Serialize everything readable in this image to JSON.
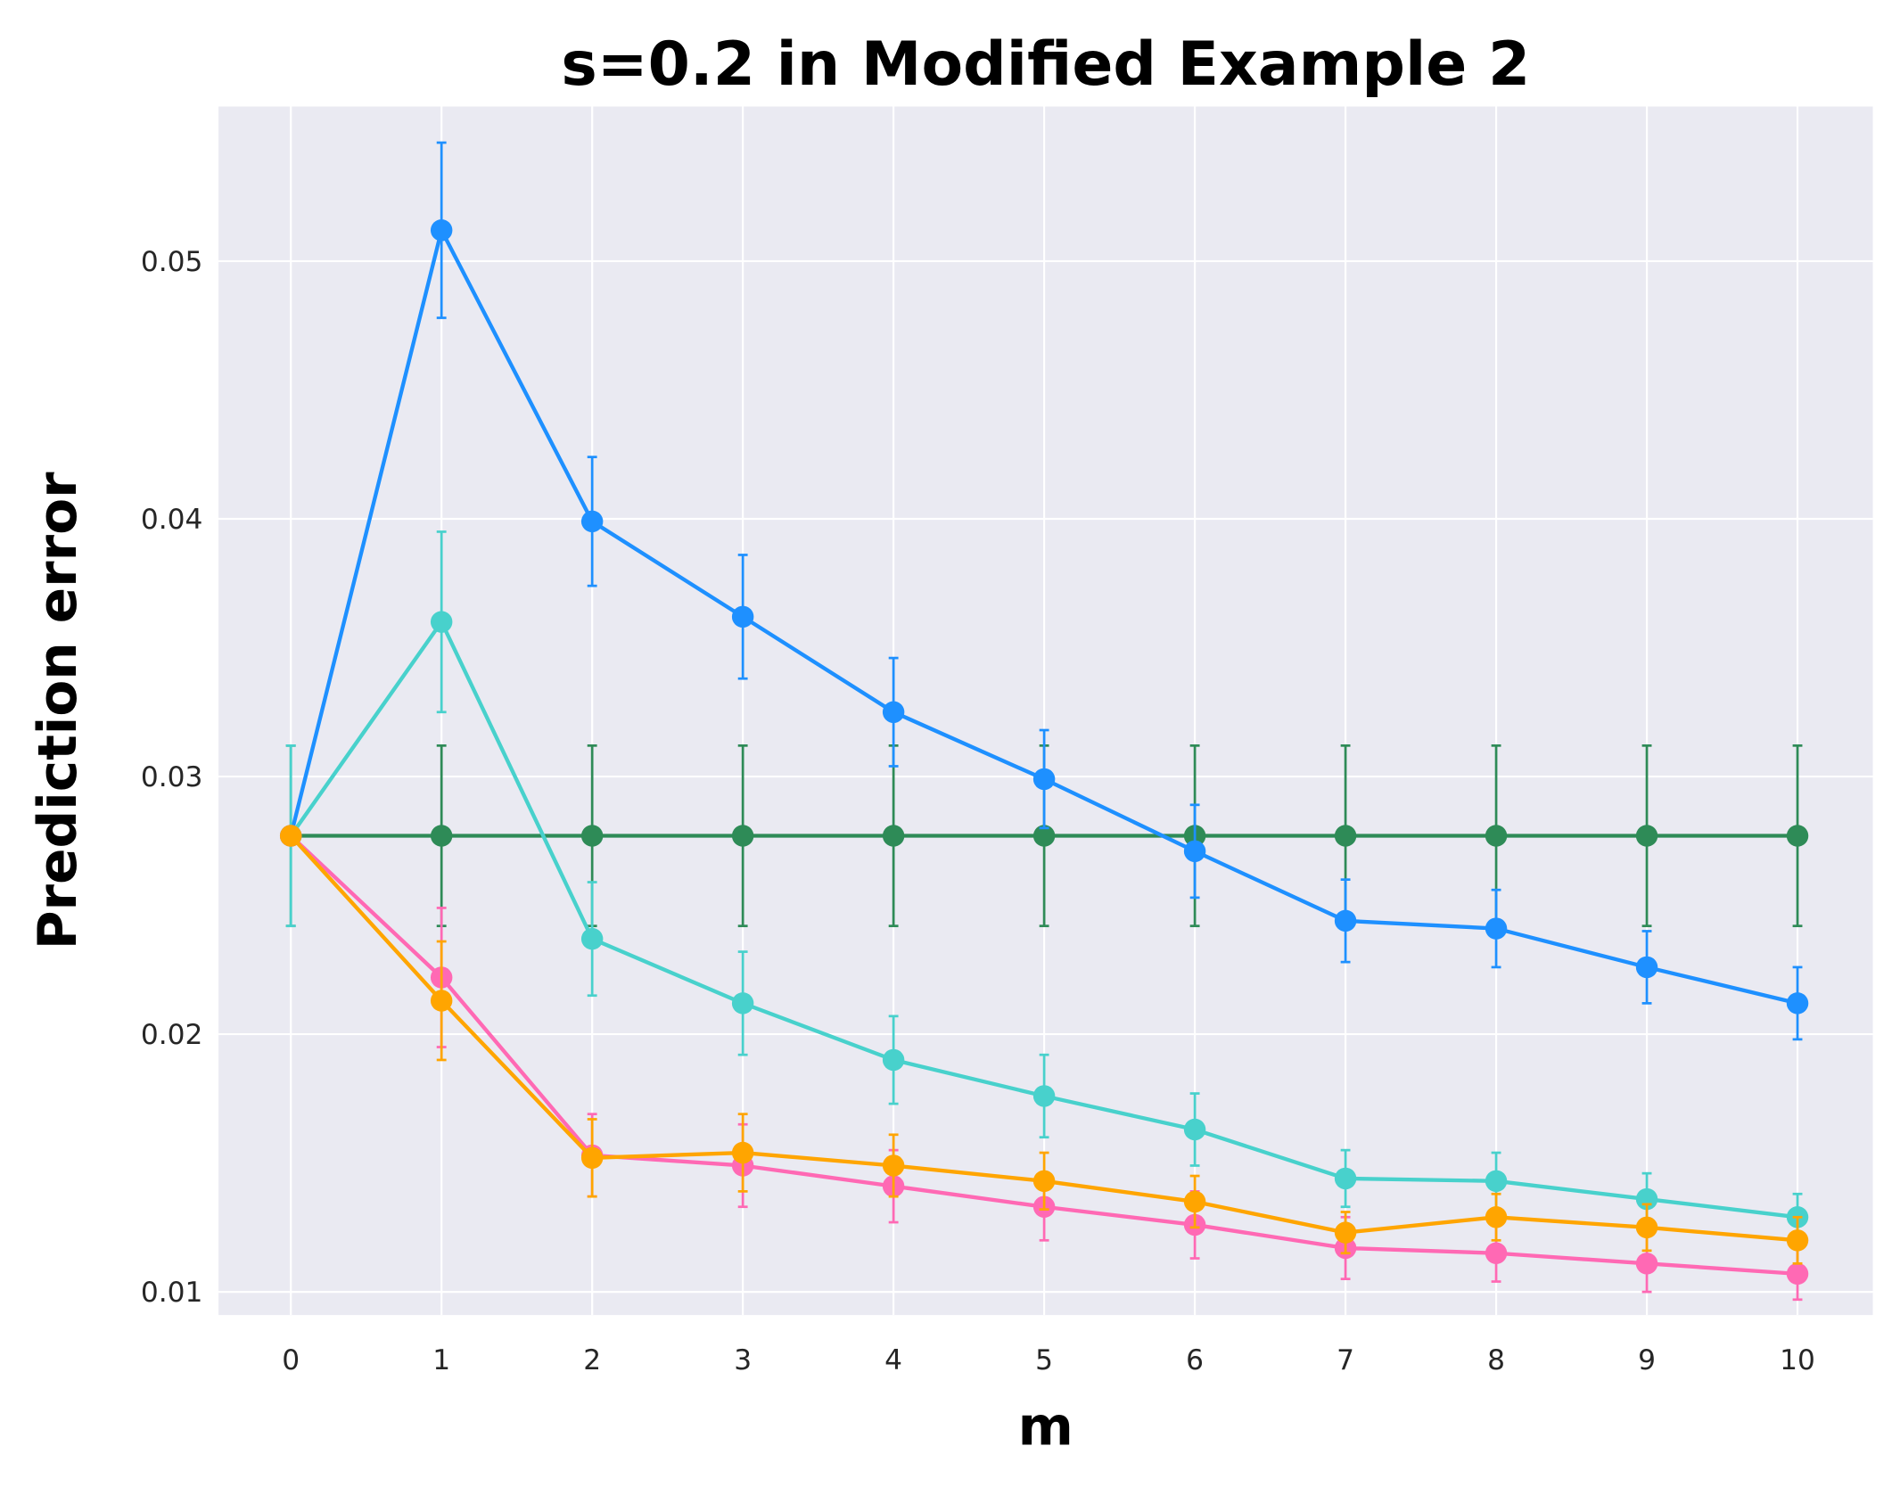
{
  "chart_data": {
    "type": "line",
    "title": "s=0.2 in Modified Example 2",
    "xlabel": "m",
    "ylabel": "Prediction error",
    "x": [
      0,
      1,
      2,
      3,
      4,
      5,
      6,
      7,
      8,
      9,
      10
    ],
    "xticks": [
      "0",
      "1",
      "2",
      "3",
      "4",
      "5",
      "6",
      "7",
      "8",
      "9",
      "10"
    ],
    "yticks": [
      "0.01",
      "0.02",
      "0.03",
      "0.04",
      "0.05"
    ],
    "ytick_values": [
      0.01,
      0.02,
      0.03,
      0.04,
      0.05
    ],
    "xlim": [
      -0.48,
      10.5
    ],
    "ylim": [
      0.0091,
      0.056
    ],
    "grid": true,
    "legend": "none",
    "background": "#eaeaf2",
    "series": [
      {
        "color": "#2e8b57",
        "values": [
          0.0277,
          0.0277,
          0.0277,
          0.0277,
          0.0277,
          0.0277,
          0.0277,
          0.0277,
          0.0277,
          0.0277,
          0.0277
        ],
        "errors": [
          0.0035,
          0.0035,
          0.0035,
          0.0035,
          0.0035,
          0.0035,
          0.0035,
          0.0035,
          0.0035,
          0.0035,
          0.0035
        ]
      },
      {
        "color": "#1e90ff",
        "values": [
          0.0277,
          0.0512,
          0.0399,
          0.0362,
          0.0325,
          0.0299,
          0.0271,
          0.0244,
          0.0241,
          0.0226,
          0.0212
        ],
        "errors": [
          0,
          0.0034,
          0.0025,
          0.0024,
          0.0021,
          0.0019,
          0.0018,
          0.0016,
          0.0015,
          0.0014,
          0.0014
        ]
      },
      {
        "color": "#48d1cc",
        "values": [
          0.0277,
          0.036,
          0.0237,
          0.0212,
          0.019,
          0.0176,
          0.0163,
          0.0144,
          0.0143,
          0.0136,
          0.0129
        ],
        "errors": [
          0.0035,
          0.0035,
          0.0022,
          0.002,
          0.0017,
          0.0016,
          0.0014,
          0.0011,
          0.0011,
          0.001,
          0.0009
        ]
      },
      {
        "color": "#ff69b4",
        "values": [
          0.0277,
          0.0222,
          0.0153,
          0.0149,
          0.0141,
          0.0133,
          0.0126,
          0.0117,
          0.0115,
          0.0111,
          0.0107
        ],
        "errors": [
          0,
          0.0027,
          0.0016,
          0.0016,
          0.0014,
          0.0013,
          0.0013,
          0.0012,
          0.0011,
          0.0011,
          0.001
        ]
      },
      {
        "color": "#ffa500",
        "values": [
          0.0277,
          0.0213,
          0.0152,
          0.0154,
          0.0149,
          0.0143,
          0.0135,
          0.0123,
          0.0129,
          0.0125,
          0.012
        ],
        "errors": [
          0,
          0.0023,
          0.0015,
          0.0015,
          0.0012,
          0.0011,
          0.001,
          0.0008,
          0.0009,
          0.0009,
          0.0009
        ]
      }
    ]
  }
}
